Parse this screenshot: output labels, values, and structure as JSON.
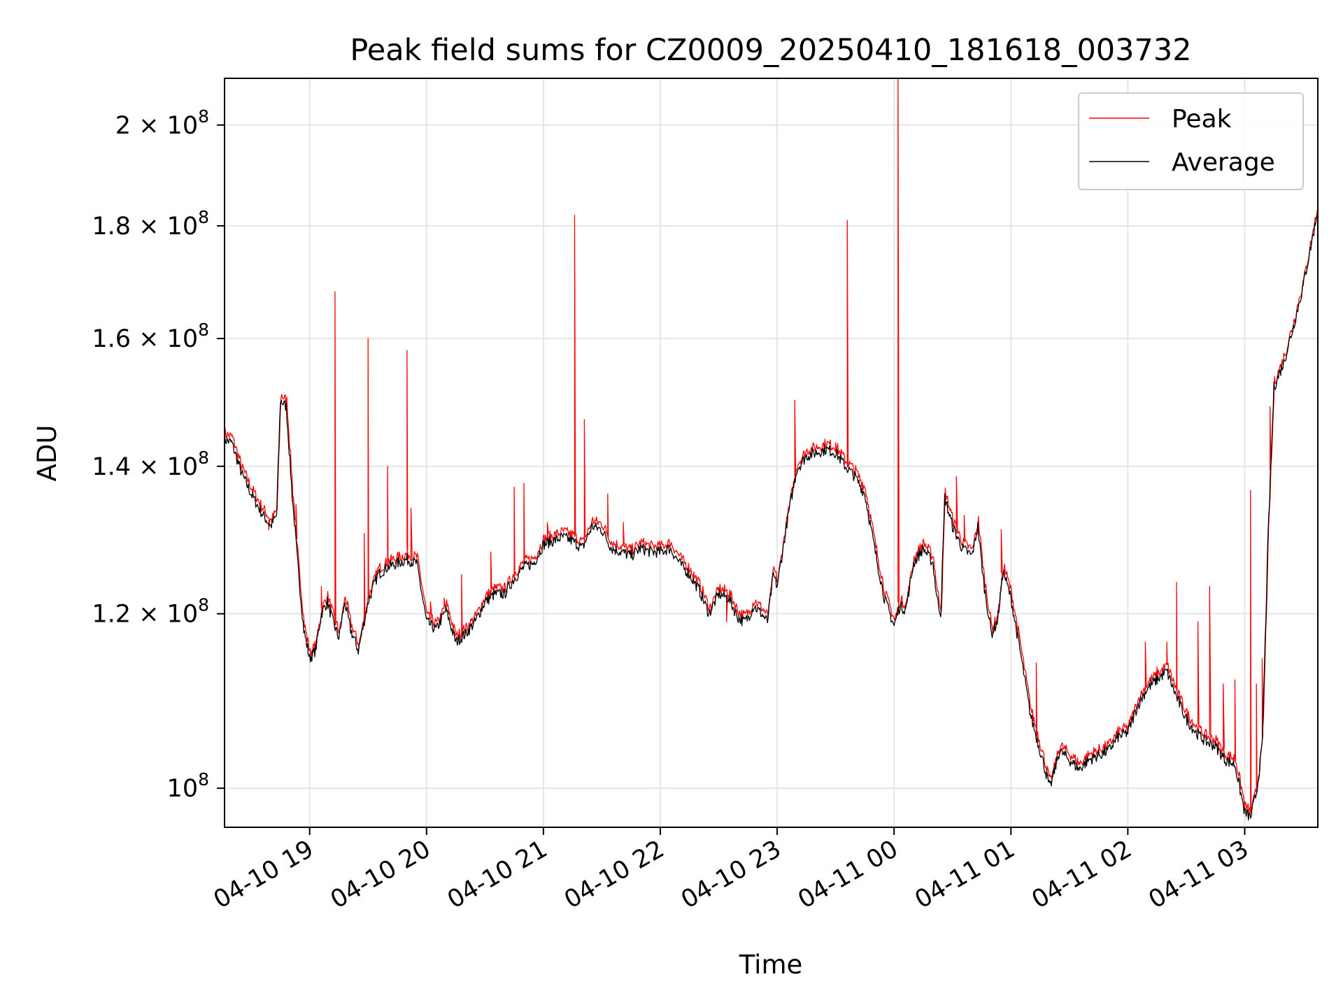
{
  "chart_data": {
    "type": "line",
    "title": "Peak field sums for CZ0009_20250410_181618_003732",
    "xlabel": "Time",
    "ylabel": "ADU",
    "x_scale": "time",
    "y_scale": "log",
    "xlim": [
      "2025-04-10T18:16:18",
      "2025-04-11T03:37:32"
    ],
    "ylim": [
      96000000,
      210000000
    ],
    "grid": true,
    "legend_position": "upper right",
    "x_ticks": [
      {
        "t": "2025-04-10T19:00",
        "label": "04-10 19"
      },
      {
        "t": "2025-04-10T20:00",
        "label": "04-10 20"
      },
      {
        "t": "2025-04-10T21:00",
        "label": "04-10 21"
      },
      {
        "t": "2025-04-10T22:00",
        "label": "04-10 22"
      },
      {
        "t": "2025-04-10T23:00",
        "label": "04-10 23"
      },
      {
        "t": "2025-04-11T00:00",
        "label": "04-11 00"
      },
      {
        "t": "2025-04-11T01:00",
        "label": "04-11 01"
      },
      {
        "t": "2025-04-11T02:00",
        "label": "04-11 02"
      },
      {
        "t": "2025-04-11T03:00",
        "label": "04-11 03"
      }
    ],
    "y_ticks": [
      {
        "v": 100000000,
        "base": "10",
        "exp": "8"
      },
      {
        "v": 120000000,
        "base": "1.2 × 10",
        "exp": "8"
      },
      {
        "v": 140000000,
        "base": "1.4 × 10",
        "exp": "8"
      },
      {
        "v": 160000000,
        "base": "1.6 × 10",
        "exp": "8"
      },
      {
        "v": 180000000,
        "base": "1.8 × 10",
        "exp": "8"
      },
      {
        "v": 200000000,
        "base": "2 × 10",
        "exp": "8"
      }
    ],
    "series": [
      {
        "name": "Average",
        "color": "#000000",
        "x": [
          "2025-04-10T18:16",
          "2025-04-10T18:20",
          "2025-04-10T18:25",
          "2025-04-10T18:30",
          "2025-04-10T18:35",
          "2025-04-10T18:40",
          "2025-04-10T18:43",
          "2025-04-10T18:45",
          "2025-04-10T18:48",
          "2025-04-10T18:51",
          "2025-04-10T18:54",
          "2025-04-10T18:57",
          "2025-04-10T19:00",
          "2025-04-10T19:03",
          "2025-04-10T19:06",
          "2025-04-10T19:09",
          "2025-04-10T19:12",
          "2025-04-10T19:15",
          "2025-04-10T19:18",
          "2025-04-10T19:21",
          "2025-04-10T19:25",
          "2025-04-10T19:30",
          "2025-04-10T19:35",
          "2025-04-10T19:40",
          "2025-04-10T19:45",
          "2025-04-10T19:50",
          "2025-04-10T19:55",
          "2025-04-10T20:00",
          "2025-04-10T20:05",
          "2025-04-10T20:10",
          "2025-04-10T20:15",
          "2025-04-10T20:20",
          "2025-04-10T20:25",
          "2025-04-10T20:30",
          "2025-04-10T20:35",
          "2025-04-10T20:40",
          "2025-04-10T20:45",
          "2025-04-10T20:50",
          "2025-04-10T20:55",
          "2025-04-10T21:00",
          "2025-04-10T21:05",
          "2025-04-10T21:10",
          "2025-04-10T21:15",
          "2025-04-10T21:20",
          "2025-04-10T21:25",
          "2025-04-10T21:30",
          "2025-04-10T21:35",
          "2025-04-10T21:40",
          "2025-04-10T21:45",
          "2025-04-10T21:50",
          "2025-04-10T21:55",
          "2025-04-10T22:00",
          "2025-04-10T22:05",
          "2025-04-10T22:10",
          "2025-04-10T22:15",
          "2025-04-10T22:20",
          "2025-04-10T22:25",
          "2025-04-10T22:30",
          "2025-04-10T22:35",
          "2025-04-10T22:40",
          "2025-04-10T22:43",
          "2025-04-10T22:45",
          "2025-04-10T22:48",
          "2025-04-10T22:52",
          "2025-04-10T22:55",
          "2025-04-10T22:58",
          "2025-04-10T23:00",
          "2025-04-10T23:05",
          "2025-04-10T23:10",
          "2025-04-10T23:15",
          "2025-04-10T23:20",
          "2025-04-10T23:25",
          "2025-04-10T23:30",
          "2025-04-10T23:35",
          "2025-04-10T23:40",
          "2025-04-10T23:45",
          "2025-04-10T23:50",
          "2025-04-10T23:55",
          "2025-04-11T00:00",
          "2025-04-11T00:03",
          "2025-04-11T00:06",
          "2025-04-11T00:10",
          "2025-04-11T00:15",
          "2025-04-11T00:20",
          "2025-04-11T00:22",
          "2025-04-11T00:24",
          "2025-04-11T00:26",
          "2025-04-11T00:30",
          "2025-04-11T00:35",
          "2025-04-11T00:40",
          "2025-04-11T00:43",
          "2025-04-11T00:46",
          "2025-04-11T00:50",
          "2025-04-11T00:53",
          "2025-04-11T00:56",
          "2025-04-11T01:00",
          "2025-04-11T01:05",
          "2025-04-11T01:10",
          "2025-04-11T01:15",
          "2025-04-11T01:20",
          "2025-04-11T01:25",
          "2025-04-11T01:30",
          "2025-04-11T01:35",
          "2025-04-11T01:40",
          "2025-04-11T01:45",
          "2025-04-11T01:50",
          "2025-04-11T01:55",
          "2025-04-11T02:00",
          "2025-04-11T02:05",
          "2025-04-11T02:10",
          "2025-04-11T02:15",
          "2025-04-11T02:20",
          "2025-04-11T02:25",
          "2025-04-11T02:30",
          "2025-04-11T02:35",
          "2025-04-11T02:40",
          "2025-04-11T02:45",
          "2025-04-11T02:50",
          "2025-04-11T02:55",
          "2025-04-11T03:00",
          "2025-04-11T03:03",
          "2025-04-11T03:06",
          "2025-04-11T03:09",
          "2025-04-11T03:12",
          "2025-04-11T03:15",
          "2025-04-11T03:20",
          "2025-04-11T03:25",
          "2025-04-11T03:30",
          "2025-04-11T03:37"
        ],
        "y": [
          144000000,
          143500000,
          139000000,
          136000000,
          133500000,
          131500000,
          133000000,
          150000000,
          149000000,
          136000000,
          126000000,
          118000000,
          114500000,
          115500000,
          120000000,
          121500000,
          119000000,
          117000000,
          121500000,
          118000000,
          115500000,
          121500000,
          125000000,
          126000000,
          126500000,
          127000000,
          126500000,
          119000000,
          118000000,
          120500000,
          116500000,
          117500000,
          119000000,
          121500000,
          122500000,
          122500000,
          124500000,
          126000000,
          126500000,
          129000000,
          129500000,
          130000000,
          129500000,
          128500000,
          131500000,
          131000000,
          128500000,
          128000000,
          127500000,
          128500000,
          128000000,
          128000000,
          128500000,
          126500000,
          125000000,
          123000000,
          120000000,
          122500000,
          122000000,
          119500000,
          119000000,
          119500000,
          121000000,
          120000000,
          119000000,
          125000000,
          123500000,
          132000000,
          139500000,
          141500000,
          142000000,
          142500000,
          142000000,
          140000000,
          138500000,
          136000000,
          128500000,
          122000000,
          118500000,
          121000000,
          120500000,
          126500000,
          128500000,
          126500000,
          122000000,
          120000000,
          135500000,
          131500000,
          128500000,
          127500000,
          131500000,
          124000000,
          117500000,
          119000000,
          125500000,
          122000000,
          115000000,
          108000000,
          104000000,
          100000000,
          104000000,
          103000000,
          102000000,
          103000000,
          103500000,
          104000000,
          105500000,
          106000000,
          109000000,
          111000000,
          112000000,
          113000000,
          110000000,
          107500000,
          106000000,
          105000000,
          104500000,
          103000000,
          102500000,
          97500000,
          97000000,
          99500000,
          104500000,
          130000000,
          152000000,
          156000000,
          162000000,
          169000000,
          182000000
        ]
      },
      {
        "name": "Peak",
        "color": "#ff0000",
        "x_offset_minutes": 0.3,
        "y_offset_ratio": 0.006,
        "spikes": [
          {
            "t": "2025-04-10T18:39",
            "v": 131000000
          },
          {
            "t": "2025-04-10T18:51",
            "v": 135000000
          },
          {
            "t": "2025-04-10T18:53",
            "v": 134500000
          },
          {
            "t": "2025-04-10T19:06",
            "v": 123500000
          },
          {
            "t": "2025-04-10T19:13",
            "v": 168000000
          },
          {
            "t": "2025-04-10T19:28",
            "v": 130500000
          },
          {
            "t": "2025-04-10T19:30",
            "v": 160000000
          },
          {
            "t": "2025-04-10T19:40",
            "v": 140000000
          },
          {
            "t": "2025-04-10T19:50",
            "v": 158000000
          },
          {
            "t": "2025-04-10T19:52",
            "v": 134000000
          },
          {
            "t": "2025-04-10T20:02",
            "v": 121500000
          },
          {
            "t": "2025-04-10T20:09",
            "v": 122000000
          },
          {
            "t": "2025-04-10T20:18",
            "v": 125000000
          },
          {
            "t": "2025-04-10T20:33",
            "v": 128000000
          },
          {
            "t": "2025-04-10T20:45",
            "v": 137000000
          },
          {
            "t": "2025-04-10T20:50",
            "v": 137500000
          },
          {
            "t": "2025-04-10T21:02",
            "v": 132000000
          },
          {
            "t": "2025-04-10T21:16",
            "v": 182000000
          },
          {
            "t": "2025-04-10T21:21",
            "v": 147000000
          },
          {
            "t": "2025-04-10T21:33",
            "v": 136000000
          },
          {
            "t": "2025-04-10T21:41",
            "v": 132000000
          },
          {
            "t": "2025-04-10T22:34",
            "v": 119000000
          },
          {
            "t": "2025-04-10T23:09",
            "v": 150000000
          },
          {
            "t": "2025-04-10T23:30",
            "v": 143500000
          },
          {
            "t": "2025-04-10T23:36",
            "v": 181000000
          },
          {
            "t": "2025-04-11T00:02",
            "v": 214000000
          },
          {
            "t": "2025-04-11T00:32",
            "v": 138500000
          },
          {
            "t": "2025-04-11T00:36",
            "v": 133000000
          },
          {
            "t": "2025-04-11T00:55",
            "v": 131000000
          },
          {
            "t": "2025-04-11T01:13",
            "v": 114000000
          },
          {
            "t": "2025-04-11T02:09",
            "v": 116500000
          },
          {
            "t": "2025-04-11T02:15",
            "v": 113500000
          },
          {
            "t": "2025-04-11T02:20",
            "v": 116500000
          },
          {
            "t": "2025-04-11T02:25",
            "v": 124000000
          },
          {
            "t": "2025-04-11T02:36",
            "v": 119000000
          },
          {
            "t": "2025-04-11T02:42",
            "v": 123500000
          },
          {
            "t": "2025-04-11T02:49",
            "v": 111500000
          },
          {
            "t": "2025-04-11T02:55",
            "v": 112000000
          },
          {
            "t": "2025-04-11T03:03",
            "v": 136500000
          },
          {
            "t": "2025-04-11T03:06",
            "v": 111500000
          },
          {
            "t": "2025-04-11T03:09",
            "v": 114500000
          },
          {
            "t": "2025-04-11T03:13",
            "v": 149000000
          },
          {
            "t": "2025-04-11T03:20",
            "v": 157000000
          }
        ]
      }
    ]
  }
}
